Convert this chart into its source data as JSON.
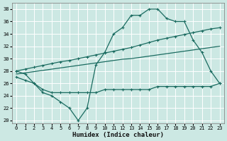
{
  "background_color": "#cce8e3",
  "grid_color": "#ffffff",
  "line_color": "#1a6b60",
  "xlabel": "Humidex (Indice chaleur)",
  "xlim": [
    -0.5,
    23.5
  ],
  "ylim": [
    19.5,
    39.0
  ],
  "yticks": [
    20,
    22,
    24,
    26,
    28,
    30,
    32,
    34,
    36,
    38
  ],
  "xticks": [
    0,
    1,
    2,
    3,
    4,
    5,
    6,
    7,
    8,
    9,
    10,
    11,
    12,
    13,
    14,
    15,
    16,
    17,
    18,
    19,
    20,
    21,
    22,
    23
  ],
  "curve_x": [
    0,
    1,
    2,
    3,
    4,
    5,
    6,
    7,
    8,
    9,
    10,
    11,
    12,
    13,
    14,
    15,
    16,
    17,
    18,
    19,
    20,
    21,
    22,
    23
  ],
  "curve_y": [
    28.0,
    27.5,
    26.0,
    24.5,
    24.0,
    23.0,
    22.0,
    20.0,
    22.0,
    29.0,
    31.0,
    34.0,
    35.0,
    37.0,
    37.0,
    38.0,
    38.0,
    36.5,
    36.0,
    36.0,
    33.0,
    31.0,
    28.0,
    26.0
  ],
  "line_upper_x": [
    0,
    1,
    2,
    3,
    4,
    5,
    6,
    7,
    8,
    9,
    10,
    11,
    12,
    13,
    14,
    15,
    16,
    17,
    18,
    19,
    20,
    21,
    22,
    23
  ],
  "line_upper_y": [
    28.0,
    28.3,
    28.6,
    28.9,
    29.2,
    29.5,
    29.7,
    30.0,
    30.3,
    30.6,
    30.9,
    31.2,
    31.5,
    31.8,
    32.2,
    32.6,
    33.0,
    33.3,
    33.6,
    33.9,
    34.2,
    34.5,
    34.8,
    35.0
  ],
  "line_lower_x": [
    0,
    1,
    2,
    3,
    4,
    5,
    6,
    7,
    8,
    9,
    10,
    11,
    12,
    13,
    14,
    15,
    16,
    17,
    18,
    19,
    20,
    21,
    22,
    23
  ],
  "line_lower_y": [
    27.5,
    27.7,
    27.9,
    28.1,
    28.3,
    28.5,
    28.7,
    28.9,
    29.1,
    29.3,
    29.5,
    29.7,
    29.9,
    30.0,
    30.2,
    30.4,
    30.6,
    30.8,
    31.0,
    31.2,
    31.4,
    31.6,
    31.8,
    32.0
  ],
  "line_flat_x": [
    0,
    1,
    2,
    3,
    4,
    5,
    6,
    7,
    8,
    9,
    10,
    11,
    12,
    13,
    14,
    15,
    16,
    17,
    18,
    19,
    20,
    21,
    22,
    23
  ],
  "line_flat_y": [
    27.0,
    26.5,
    26.0,
    25.0,
    24.5,
    24.5,
    24.5,
    24.5,
    24.5,
    24.5,
    25.0,
    25.0,
    25.0,
    25.0,
    25.0,
    25.0,
    25.5,
    25.5,
    25.5,
    25.5,
    25.5,
    25.5,
    25.5,
    26.0
  ]
}
